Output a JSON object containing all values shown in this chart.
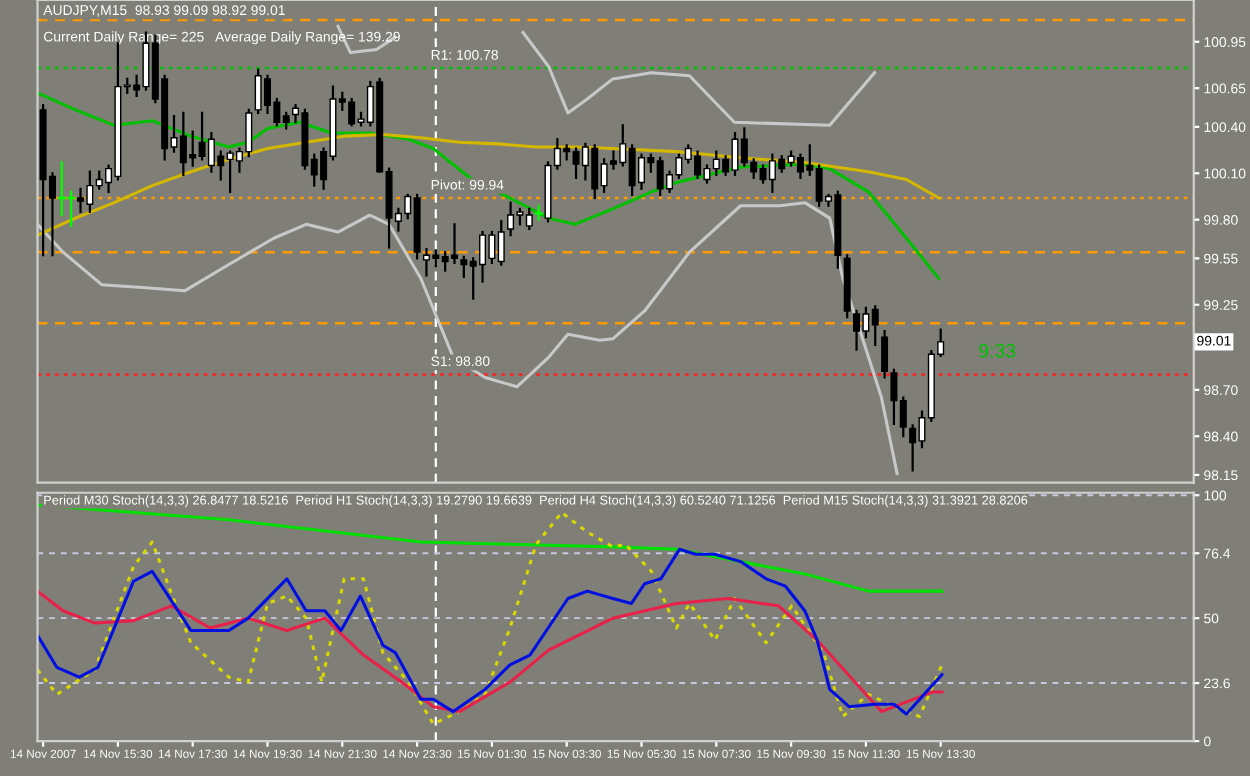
{
  "chart_data": [
    {
      "type": "candlestick",
      "title": "AUDJPY,M15  98.93 99.09 98.92 99.01",
      "annotations": [
        "Current Daily Range= 225   Average Daily Range= 139.29",
        "9:33",
        "99.01"
      ],
      "x": [
        "2007-11-14T13:30",
        "2007-11-14T13:45",
        "2007-11-14T14:00",
        "2007-11-14T14:15",
        "2007-11-14T14:30",
        "2007-11-14T14:45",
        "2007-11-14T15:00",
        "2007-11-14T15:15",
        "2007-11-14T15:30",
        "2007-11-14T15:45",
        "2007-11-14T16:00",
        "2007-11-14T16:15",
        "2007-11-14T16:30",
        "2007-11-14T16:45",
        "2007-11-14T17:00",
        "2007-11-14T17:15",
        "2007-11-14T17:30",
        "2007-11-14T17:45",
        "2007-11-14T18:00",
        "2007-11-14T18:15",
        "2007-11-14T18:30",
        "2007-11-14T18:45",
        "2007-11-14T19:00",
        "2007-11-14T19:15",
        "2007-11-14T19:30",
        "2007-11-14T19:45",
        "2007-11-14T20:00",
        "2007-11-14T20:15",
        "2007-11-14T20:30",
        "2007-11-14T20:45",
        "2007-11-14T21:00",
        "2007-11-14T21:15",
        "2007-11-14T21:30",
        "2007-11-14T21:45",
        "2007-11-14T22:00",
        "2007-11-14T22:15",
        "2007-11-14T22:30",
        "2007-11-14T22:45",
        "2007-11-14T23:00",
        "2007-11-14T23:15",
        "2007-11-14T23:30",
        "2007-11-14T23:45",
        "2007-11-15T00:00",
        "2007-11-15T00:15",
        "2007-11-15T00:30",
        "2007-11-15T00:45",
        "2007-11-15T01:00",
        "2007-11-15T01:15",
        "2007-11-15T01:30",
        "2007-11-15T01:45",
        "2007-11-15T02:00",
        "2007-11-15T02:15",
        "2007-11-15T02:30",
        "2007-11-15T02:45",
        "2007-11-15T03:00",
        "2007-11-15T03:15",
        "2007-11-15T03:30",
        "2007-11-15T03:45",
        "2007-11-15T04:00",
        "2007-11-15T04:15",
        "2007-11-15T04:30",
        "2007-11-15T04:45",
        "2007-11-15T05:00",
        "2007-11-15T05:15",
        "2007-11-15T05:30",
        "2007-11-15T05:45",
        "2007-11-15T06:00",
        "2007-11-15T06:15",
        "2007-11-15T06:30",
        "2007-11-15T06:45",
        "2007-11-15T07:00",
        "2007-11-15T07:15",
        "2007-11-15T07:30",
        "2007-11-15T07:45",
        "2007-11-15T08:00",
        "2007-11-15T08:15",
        "2007-11-15T08:30",
        "2007-11-15T08:45",
        "2007-11-15T09:00",
        "2007-11-15T09:15",
        "2007-11-15T09:30",
        "2007-11-15T09:45",
        "2007-11-15T10:00",
        "2007-11-15T10:15",
        "2007-11-15T10:30",
        "2007-11-15T10:45",
        "2007-11-15T11:00",
        "2007-11-15T11:15",
        "2007-11-15T11:30",
        "2007-11-15T11:45",
        "2007-11-15T12:00",
        "2007-11-15T12:15",
        "2007-11-15T12:30",
        "2007-11-15T12:45",
        "2007-11-15T13:00",
        "2007-11-15T13:15",
        "2007-11-15T13:30"
      ],
      "ohlc": [
        [
          100.51,
          100.54,
          99.57,
          100.06
        ],
        [
          100.08,
          100.1,
          99.57,
          99.94
        ],
        [
          99.94,
          100.17,
          99.83,
          99.94
        ],
        [
          99.94,
          99.98,
          99.76,
          99.94
        ],
        [
          99.94,
          100.0,
          99.85,
          99.92
        ],
        [
          99.9,
          100.11,
          99.85,
          100.02
        ],
        [
          100.02,
          100.11,
          100.0,
          100.06
        ],
        [
          100.04,
          100.15,
          99.98,
          100.13
        ],
        [
          100.08,
          100.94,
          100.06,
          100.66
        ],
        [
          100.66,
          100.71,
          100.62,
          100.67
        ],
        [
          100.67,
          100.73,
          100.6,
          100.64
        ],
        [
          100.66,
          101.01,
          100.64,
          100.94
        ],
        [
          100.94,
          100.99,
          100.56,
          100.58
        ],
        [
          100.71,
          100.73,
          100.19,
          100.26
        ],
        [
          100.27,
          100.47,
          100.24,
          100.33
        ],
        [
          100.34,
          100.49,
          100.09,
          100.17
        ],
        [
          100.22,
          100.37,
          100.15,
          100.2
        ],
        [
          100.3,
          100.49,
          100.19,
          100.21
        ],
        [
          100.15,
          100.36,
          100.11,
          100.32
        ],
        [
          100.21,
          100.24,
          100.06,
          100.15
        ],
        [
          100.19,
          100.24,
          99.98,
          100.23
        ],
        [
          100.18,
          100.26,
          100.11,
          100.24
        ],
        [
          100.24,
          100.51,
          100.21,
          100.49
        ],
        [
          100.51,
          100.77,
          100.49,
          100.73
        ],
        [
          100.71,
          100.73,
          100.49,
          100.54
        ],
        [
          100.56,
          100.58,
          100.41,
          100.43
        ],
        [
          100.47,
          100.49,
          100.39,
          100.43
        ],
        [
          100.48,
          100.54,
          100.43,
          100.52
        ],
        [
          100.49,
          100.51,
          100.13,
          100.15
        ],
        [
          100.19,
          100.22,
          100.02,
          100.09
        ],
        [
          100.24,
          100.26,
          100.0,
          100.06
        ],
        [
          100.21,
          100.66,
          100.19,
          100.58
        ],
        [
          100.58,
          100.62,
          100.51,
          100.56
        ],
        [
          100.56,
          100.58,
          100.41,
          100.42
        ],
        [
          100.43,
          100.49,
          100.41,
          100.45
        ],
        [
          100.43,
          100.69,
          100.41,
          100.66
        ],
        [
          100.69,
          100.71,
          100.11,
          100.11
        ],
        [
          100.11,
          100.13,
          99.62,
          99.81
        ],
        [
          99.79,
          99.87,
          99.73,
          99.84
        ],
        [
          99.84,
          99.96,
          99.81,
          99.95
        ],
        [
          99.94,
          99.96,
          99.55,
          99.59
        ],
        [
          99.54,
          99.61,
          99.44,
          99.57
        ],
        [
          99.57,
          99.6,
          99.5,
          99.55
        ],
        [
          99.56,
          99.59,
          99.47,
          99.53
        ],
        [
          99.57,
          99.77,
          99.52,
          99.55
        ],
        [
          99.54,
          99.56,
          99.43,
          99.51
        ],
        [
          99.53,
          99.55,
          99.29,
          99.5
        ],
        [
          99.51,
          99.72,
          99.4,
          99.7
        ],
        [
          99.55,
          99.72,
          99.52,
          99.7
        ],
        [
          99.53,
          99.79,
          99.51,
          99.72
        ],
        [
          99.74,
          99.91,
          99.7,
          99.83
        ],
        [
          99.83,
          99.87,
          99.77,
          99.85
        ],
        [
          99.76,
          99.87,
          99.74,
          99.83
        ],
        [
          99.84,
          99.89,
          99.8,
          99.84
        ],
        [
          99.81,
          100.17,
          99.79,
          100.15
        ],
        [
          100.15,
          100.32,
          100.13,
          100.26
        ],
        [
          100.26,
          100.28,
          100.19,
          100.24
        ],
        [
          100.24,
          100.26,
          100.07,
          100.16
        ],
        [
          100.15,
          100.29,
          100.06,
          100.27
        ],
        [
          100.26,
          100.28,
          99.94,
          100.0
        ],
        [
          100.02,
          100.19,
          99.98,
          100.16
        ],
        [
          100.18,
          100.24,
          100.13,
          100.16
        ],
        [
          100.17,
          100.41,
          100.15,
          100.29
        ],
        [
          100.26,
          100.28,
          99.96,
          100.02
        ],
        [
          100.04,
          100.22,
          100.0,
          100.2
        ],
        [
          100.2,
          100.22,
          100.11,
          100.17
        ],
        [
          100.18,
          100.2,
          99.96,
          100.0
        ],
        [
          100.0,
          100.11,
          99.98,
          100.09
        ],
        [
          100.09,
          100.22,
          100.07,
          100.2
        ],
        [
          100.19,
          100.28,
          100.17,
          100.26
        ],
        [
          100.21,
          100.24,
          100.07,
          100.09
        ],
        [
          100.06,
          100.15,
          100.04,
          100.13
        ],
        [
          100.13,
          100.24,
          100.09,
          100.19
        ],
        [
          100.19,
          100.21,
          100.09,
          100.11
        ],
        [
          100.12,
          100.36,
          100.09,
          100.32
        ],
        [
          100.32,
          100.39,
          100.15,
          100.17
        ],
        [
          100.17,
          100.19,
          100.07,
          100.11
        ],
        [
          100.13,
          100.15,
          100.04,
          100.06
        ],
        [
          100.06,
          100.22,
          99.98,
          100.18
        ],
        [
          100.19,
          100.21,
          100.11,
          100.13
        ],
        [
          100.17,
          100.24,
          100.15,
          100.21
        ],
        [
          100.2,
          100.22,
          100.07,
          100.11
        ],
        [
          100.15,
          100.28,
          100.09,
          100.12
        ],
        [
          100.13,
          100.15,
          99.89,
          99.92
        ],
        [
          99.92,
          99.96,
          99.89,
          99.95
        ],
        [
          99.96,
          99.98,
          99.49,
          99.57
        ],
        [
          99.55,
          99.57,
          99.17,
          99.21
        ],
        [
          99.19,
          99.21,
          98.96,
          99.08
        ],
        [
          99.08,
          99.23,
          99.04,
          99.19
        ],
        [
          99.22,
          99.24,
          98.99,
          99.12
        ],
        [
          99.04,
          99.08,
          98.78,
          98.82
        ],
        [
          98.81,
          98.83,
          98.48,
          98.63
        ],
        [
          98.63,
          98.65,
          98.4,
          98.46
        ],
        [
          98.45,
          98.47,
          98.18,
          98.36
        ],
        [
          98.37,
          98.56,
          98.33,
          98.52
        ],
        [
          98.52,
          98.95,
          98.5,
          98.93
        ],
        [
          98.93,
          99.09,
          98.92,
          99.01
        ]
      ],
      "colors": [
        "#000000",
        "#000000",
        "#00ff00",
        "#00ff00",
        "#000000",
        "#ffffff",
        "#ffffff",
        "#ffffff",
        "#ffffff",
        "#ffffff",
        "#000000",
        "#ffffff",
        "#000000",
        "#000000",
        "#ffffff",
        "#000000",
        "#000000",
        "#000000",
        "#ffffff",
        "#000000",
        "#ffffff",
        "#ffffff",
        "#ffffff",
        "#ffffff",
        "#000000",
        "#000000",
        "#000000",
        "#ffffff",
        "#000000",
        "#000000",
        "#000000",
        "#ffffff",
        "#000000",
        "#000000",
        "#ffffff",
        "#ffffff",
        "#000000",
        "#000000",
        "#ffffff",
        "#ffffff",
        "#000000",
        "#ffffff",
        "#000000",
        "#000000",
        "#000000",
        "#000000",
        "#000000",
        "#ffffff",
        "#ffffff",
        "#ffffff",
        "#ffffff",
        "#ffffff",
        "#ffffff",
        "#00ff00",
        "#ffffff",
        "#ffffff",
        "#000000",
        "#000000",
        "#ffffff",
        "#000000",
        "#ffffff",
        "#000000",
        "#ffffff",
        "#000000",
        "#ffffff",
        "#000000",
        "#000000",
        "#ffffff",
        "#ffffff",
        "#ffffff",
        "#000000",
        "#ffffff",
        "#ffffff",
        "#000000",
        "#ffffff",
        "#000000",
        "#000000",
        "#000000",
        "#ffffff",
        "#000000",
        "#ffffff",
        "#000000",
        "#000000",
        "#000000",
        "#ffffff",
        "#000000",
        "#000000",
        "#000000",
        "#ffffff",
        "#000000",
        "#000000",
        "#000000",
        "#000000",
        "#000000",
        "#ffffff",
        "#ffffff",
        "#ffffff"
      ],
      "series": [
        {
          "type": "line",
          "color": "#c8c8c8",
          "x": [
            "2007-11-14T21:23",
            "2007-11-14T21:43",
            "2007-11-14T22:25",
            "2007-11-14T22:55",
            "2007-11-15T00:24",
            "2007-11-15T02:20",
            "2007-11-15T03:01",
            "2007-11-15T03:32",
            "2007-11-15T04:03",
            "2007-11-15T04:44",
            "2007-11-15T05:46",
            "2007-11-15T06:47",
            "2007-11-15T07:59",
            "2007-11-15T10:32",
            "2007-11-15T11:44"
          ],
          "values": [
            101.05,
            100.88,
            100.9,
            100.98,
            null,
            101.01,
            100.79,
            100.49,
            100.58,
            100.71,
            100.75,
            100.73,
            100.43,
            100.41,
            100.75
          ]
        },
        {
          "type": "line",
          "color": "#c8c8c8",
          "x": [
            "2007-11-14T13:21",
            "2007-11-14T14:02",
            "2007-11-14T15:04",
            "2007-11-14T16:15",
            "2007-11-14T17:17",
            "2007-11-14T18:28",
            "2007-11-14T19:40",
            "2007-11-14T20:32",
            "2007-11-14T21:23",
            "2007-11-14T22:14",
            "2007-11-14T22:45",
            "2007-11-14T23:36",
            "2007-11-15T00:28",
            "2007-11-15T01:19",
            "2007-11-15T02:10",
            "2007-11-15T03:01",
            "2007-11-15T03:32",
            "2007-11-15T04:23",
            "2007-11-15T04:44",
            "2007-11-15T05:35",
            "2007-11-15T06:47",
            "2007-11-15T08:09",
            "2007-11-15T09:11",
            "2007-11-15T09:52",
            "2007-11-15T10:32",
            "2007-11-15T10:53",
            "2007-11-15T11:24",
            "2007-11-15T11:55",
            "2007-11-15T12:20"
          ],
          "values": [
            99.77,
            99.59,
            99.38,
            99.36,
            99.34,
            99.51,
            99.68,
            99.77,
            99.72,
            99.83,
            99.77,
            99.42,
            98.91,
            98.78,
            98.72,
            98.91,
            99.06,
            99.02,
            99.03,
            99.21,
            99.59,
            99.89,
            99.89,
            99.91,
            99.81,
            99.42,
            99.04,
            98.65,
            98.16
          ]
        },
        {
          "type": "line",
          "color": "#00c000",
          "x": [
            "2007-11-14T13:21",
            "2007-11-14T14:22",
            "2007-11-14T15:24",
            "2007-11-14T16:25",
            "2007-11-14T17:27",
            "2007-11-14T18:28",
            "2007-11-14T18:59",
            "2007-11-14T19:30",
            "2007-11-14T20:21",
            "2007-11-14T21:13",
            "2007-11-14T22:14",
            "2007-11-14T23:16",
            "2007-11-14T23:56",
            "2007-11-15T00:58",
            "2007-11-15T01:59",
            "2007-11-15T03:01",
            "2007-11-15T03:43",
            "2007-11-15T04:44",
            "2007-11-15T05:46",
            "2007-11-15T06:26",
            "2007-11-15T08:09",
            "2007-11-15T09:52",
            "2007-11-15T10:32",
            "2007-11-15T11:34",
            "2007-11-15T12:35",
            "2007-11-15T13:27"
          ],
          "values": [
            100.62,
            100.51,
            100.41,
            100.44,
            100.34,
            100.27,
            100.3,
            100.39,
            100.43,
            100.36,
            100.36,
            100.32,
            100.26,
            100.06,
            99.94,
            99.81,
            99.77,
            99.87,
            99.98,
            100.04,
            100.14,
            100.16,
            100.13,
            99.98,
            99.68,
            99.42
          ]
        },
        {
          "type": "line",
          "color": "#d4b800",
          "x": [
            "2007-11-14T13:21",
            "2007-11-14T14:22",
            "2007-11-14T15:24",
            "2007-11-14T16:25",
            "2007-11-14T17:27",
            "2007-11-14T18:28",
            "2007-11-14T19:30",
            "2007-11-14T20:32",
            "2007-11-14T21:33",
            "2007-11-14T22:35",
            "2007-11-14T23:36",
            "2007-11-15T00:38",
            "2007-11-15T01:39",
            "2007-11-15T02:41",
            "2007-11-15T03:43",
            "2007-11-15T04:44",
            "2007-11-15T06:26",
            "2007-11-15T08:09",
            "2007-11-15T09:52",
            "2007-11-15T11:34",
            "2007-11-15T12:35",
            "2007-11-15T13:27"
          ],
          "values": [
            99.7,
            99.81,
            99.91,
            100.02,
            100.11,
            100.19,
            100.26,
            100.3,
            100.34,
            100.35,
            100.33,
            100.3,
            100.29,
            100.27,
            100.27,
            100.26,
            100.24,
            100.2,
            100.17,
            100.11,
            100.06,
            99.94
          ]
        }
      ],
      "xlim": [
        "2007-11-14T13:21",
        "2007-11-15T20:16"
      ],
      "ylim": [
        98.1,
        101.22
      ],
      "yticks": [
        98.15,
        {
          "value": 98.4,
          "label": "98.40"
        },
        {
          "value": 98.7,
          "label": "98.70"
        },
        99.25,
        99.55,
        {
          "value": 99.8,
          "label": "99.80"
        },
        {
          "value": 100.1,
          "label": "100.10"
        },
        {
          "value": 100.4,
          "label": "100.40"
        },
        100.65,
        100.95
      ],
      "ref_lines": [
        {
          "axis": "y",
          "value": 101.09,
          "color": "#ff9900",
          "line_style": "dashed"
        },
        {
          "axis": "y",
          "value": 100.78,
          "label": "R1: 100.78",
          "color": "#00c000",
          "line_style": "dotted"
        },
        {
          "axis": "y",
          "value": 99.94,
          "label": "Pivot: 99.94",
          "color": "#ff9900",
          "line_style": "dotted"
        },
        {
          "axis": "y",
          "value": 99.59,
          "color": "#ff9900",
          "line_style": "dashed"
        },
        {
          "axis": "y",
          "value": 99.13,
          "color": "#ff9900",
          "line_style": "dashed"
        },
        {
          "axis": "y",
          "value": 98.8,
          "label": "S1: 98.80",
          "color": "#ff2020",
          "line_style": "dotted"
        },
        {
          "axis": "x",
          "value": "2007-11-15T00:00",
          "color": "#ffffff",
          "line_style": "dashed"
        }
      ],
      "tick_labels": "y"
    },
    {
      "type": "line",
      "title": "Period M30 Stoch(14,3,3) 26.8477 18.5216  Period H1 Stoch(14,3,3) 19.2790 19.6639  Period H4 Stoch(14,3,3) 60.5240 71.1256  Period M15 Stoch(14,3,3) 31.3921 28.8206",
      "series": [
        {
          "color": "#00e000",
          "line_style": "solid",
          "x": [
            "2007-11-14T13:21",
            "2007-11-14T18:28",
            "2007-11-14T23:36",
            "2007-11-15T04:44",
            "2007-11-15T06:26",
            "2007-11-15T08:09",
            "2007-11-15T09:52",
            "2007-11-15T11:34",
            "2007-11-15T13:32"
          ],
          "values": [
            96,
            90,
            81,
            79,
            78,
            73,
            68,
            61,
            61
          ]
        },
        {
          "color": "#d8d800",
          "line_style": "dotted",
          "x": [
            "2007-11-14T13:21",
            "2007-11-14T13:52",
            "2007-11-14T14:53",
            "2007-11-14T15:55",
            "2007-11-14T16:25",
            "2007-11-14T16:56",
            "2007-11-14T17:27",
            "2007-11-14T18:28",
            "2007-11-14T18:59",
            "2007-11-14T19:30",
            "2007-11-14T20:01",
            "2007-11-14T20:32",
            "2007-11-14T20:57",
            "2007-11-14T21:33",
            "2007-11-14T22:04",
            "2007-11-14T22:35",
            "2007-11-14T23:16",
            "2007-11-14T23:56",
            "2007-11-15T00:38",
            "2007-11-15T01:19",
            "2007-11-15T01:59",
            "2007-11-15T02:41",
            "2007-11-15T03:22",
            "2007-11-15T04:03",
            "2007-11-15T04:44",
            "2007-11-15T05:04",
            "2007-11-15T05:46",
            "2007-11-15T06:26",
            "2007-11-15T06:47",
            "2007-11-15T07:28",
            "2007-11-15T07:59",
            "2007-11-15T08:50",
            "2007-11-15T09:31",
            "2007-11-15T10:22",
            "2007-11-15T10:53",
            "2007-11-15T11:34",
            "2007-11-15T12:15",
            "2007-11-15T12:56",
            "2007-11-15T13:32"
          ],
          "values": [
            29,
            19,
            29,
            71,
            81,
            60,
            40,
            26,
            24,
            56,
            59,
            50,
            24,
            66,
            66,
            36,
            24,
            7,
            12,
            19,
            46,
            80,
            93,
            85,
            79,
            80,
            69,
            46,
            56,
            41,
            58,
            40,
            55,
            36,
            10,
            19,
            14,
            10,
            31
          ]
        },
        {
          "color": "#e8204a",
          "line_style": "solid",
          "x": [
            "2007-11-14T13:21",
            "2007-11-14T14:02",
            "2007-11-14T14:53",
            "2007-11-14T15:55",
            "2007-11-14T16:56",
            "2007-11-14T17:58",
            "2007-11-14T18:59",
            "2007-11-14T20:01",
            "2007-11-14T21:02",
            "2007-11-14T22:04",
            "2007-11-14T23:05",
            "2007-11-14T23:56",
            "2007-11-15T00:38",
            "2007-11-15T01:59",
            "2007-11-15T03:01",
            "2007-11-15T04:13",
            "2007-11-15T04:44",
            "2007-11-15T06:26",
            "2007-11-15T07:49",
            "2007-11-15T09:10",
            "2007-11-15T10:12",
            "2007-11-15T11:55",
            "2007-11-15T13:17",
            "2007-11-15T13:32"
          ],
          "values": [
            61,
            53,
            48,
            49,
            55,
            46,
            50,
            45,
            50,
            35,
            24,
            14,
            12,
            24,
            37,
            46,
            50,
            56,
            58,
            55,
            41,
            12,
            20,
            20
          ]
        },
        {
          "color": "#0010e0",
          "line_style": "solid",
          "x": [
            "2007-11-14T13:21",
            "2007-11-14T13:52",
            "2007-11-14T14:28",
            "2007-11-14T14:58",
            "2007-11-14T15:55",
            "2007-11-14T16:25",
            "2007-11-14T17:27",
            "2007-11-14T18:28",
            "2007-11-14T18:59",
            "2007-11-14T20:01",
            "2007-11-14T20:32",
            "2007-11-14T21:02",
            "2007-11-14T21:28",
            "2007-11-14T21:59",
            "2007-11-14T22:35",
            "2007-11-14T22:55",
            "2007-11-14T23:36",
            "2007-11-14T23:56",
            "2007-11-15T00:28",
            "2007-11-15T01:19",
            "2007-11-15T01:59",
            "2007-11-15T02:31",
            "2007-11-15T03:32",
            "2007-11-15T04:03",
            "2007-11-15T04:44",
            "2007-11-15T05:14",
            "2007-11-15T05:35",
            "2007-11-15T06:01",
            "2007-11-15T06:31",
            "2007-11-15T06:57",
            "2007-11-15T07:28",
            "2007-11-15T08:09",
            "2007-11-15T08:50",
            "2007-11-15T09:21",
            "2007-11-15T09:52",
            "2007-11-15T10:12",
            "2007-11-15T10:32",
            "2007-11-15T11:03",
            "2007-11-15T11:44",
            "2007-11-15T12:15",
            "2007-11-15T12:35",
            "2007-11-15T13:32"
          ],
          "values": [
            43,
            30,
            26,
            30,
            65,
            69,
            45,
            45,
            50,
            66,
            53,
            53,
            45,
            59,
            39,
            36,
            17,
            17,
            12,
            21,
            31,
            35,
            58,
            61,
            58,
            56,
            64,
            66,
            78,
            76,
            76,
            73,
            66,
            63,
            53,
            41,
            21,
            14,
            15,
            15,
            11,
            27
          ]
        }
      ],
      "xlim": [
        "2007-11-14T13:21",
        "2007-11-15T20:16"
      ],
      "xticks": [
        {
          "value": "2007-11-14T13:30",
          "label": "14 Nov 2007"
        },
        {
          "value": "2007-11-14T15:30",
          "label": "14 Nov 15:30"
        },
        {
          "value": "2007-11-14T17:30",
          "label": "14 Nov 17:30"
        },
        {
          "value": "2007-11-14T19:30",
          "label": "14 Nov 19:30"
        },
        {
          "value": "2007-11-14T21:30",
          "label": "14 Nov 21:30"
        },
        {
          "value": "2007-11-14T23:30",
          "label": "14 Nov 23:30"
        },
        {
          "value": "2007-11-15T01:30",
          "label": "15 Nov 01:30"
        },
        {
          "value": "2007-11-15T03:30",
          "label": "15 Nov 03:30"
        },
        {
          "value": "2007-11-15T05:30",
          "label": "15 Nov 05:30"
        },
        {
          "value": "2007-11-15T07:30",
          "label": "15 Nov 07:30"
        },
        {
          "value": "2007-11-15T09:30",
          "label": "15 Nov 09:30"
        },
        {
          "value": "2007-11-15T11:30",
          "label": "15 Nov 11:30"
        },
        {
          "value": "2007-11-15T13:30",
          "label": "15 Nov 13:30"
        }
      ],
      "ylim": [
        0,
        101
      ],
      "yticks": [
        0,
        23.6,
        50,
        76.4,
        100
      ],
      "grid": "y",
      "ref_lines": [
        {
          "axis": "x",
          "value": "2007-11-15T00:00",
          "color": "#ffffff",
          "line_style": "dashed"
        }
      ]
    }
  ]
}
